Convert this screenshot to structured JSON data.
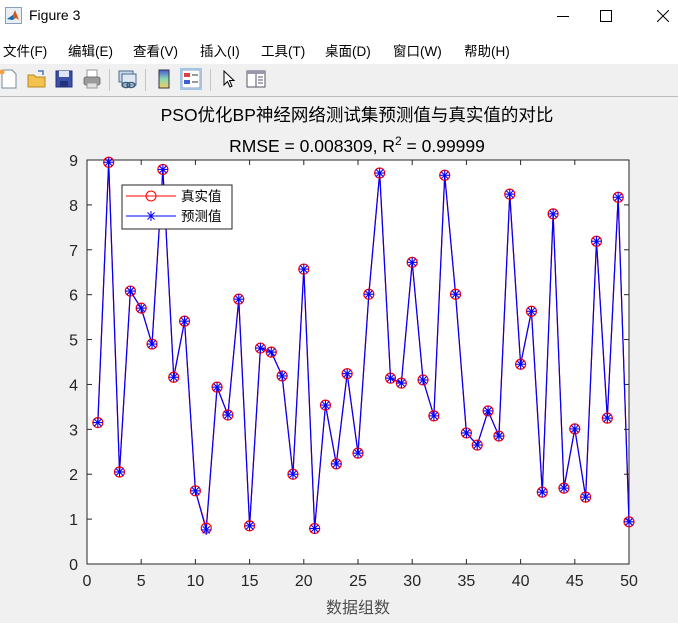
{
  "window": {
    "title": "Figure 3",
    "minimize_icon": "minimize-icon",
    "maximize_icon": "maximize-icon",
    "close_icon": "close-icon"
  },
  "menu": {
    "items": [
      {
        "label": "文件(F)"
      },
      {
        "label": "编辑(E)"
      },
      {
        "label": "查看(V)"
      },
      {
        "label": "插入(I)"
      },
      {
        "label": "工具(T)"
      },
      {
        "label": "桌面(D)"
      },
      {
        "label": "窗口(W)"
      },
      {
        "label": "帮助(H)"
      }
    ]
  },
  "toolbar": {
    "buttons": [
      {
        "icon": "new-figure-icon"
      },
      {
        "icon": "open-folder-icon"
      },
      {
        "icon": "save-icon"
      },
      {
        "icon": "print-icon"
      },
      {
        "icon": "link-plot-icon"
      },
      {
        "icon": "colorbar-icon"
      },
      {
        "icon": "legend-icon",
        "active": true
      },
      {
        "icon": "pointer-icon"
      },
      {
        "icon": "property-inspector-icon"
      }
    ]
  },
  "colors": {
    "true_series": "#ff0000",
    "pred_series": "#0000ff",
    "axes": "#262626",
    "background": "#f0f0f0"
  },
  "chart_data": {
    "type": "line",
    "title": "PSO优化BP神经网络测试集预测值与真实值的对比",
    "subtitle": "RMSE = 0.008309, R² = 0.99999",
    "subtitle_parts": {
      "prefix": "RMSE = 0.008309, R",
      "sup": "2",
      "suffix": " = 0.99999"
    },
    "xlabel": "数据组数",
    "ylabel": "",
    "xlim": [
      0,
      50
    ],
    "ylim": [
      0,
      9
    ],
    "xticks": [
      0,
      5,
      10,
      15,
      20,
      25,
      30,
      35,
      40,
      45,
      50
    ],
    "yticks": [
      0,
      1,
      2,
      3,
      4,
      5,
      6,
      7,
      8,
      9
    ],
    "grid": false,
    "legend_position": "upper left",
    "x": [
      1,
      2,
      3,
      4,
      5,
      6,
      7,
      8,
      9,
      10,
      11,
      12,
      13,
      14,
      15,
      16,
      17,
      18,
      19,
      20,
      21,
      22,
      23,
      24,
      25,
      26,
      27,
      28,
      29,
      30,
      31,
      32,
      33,
      34,
      35,
      36,
      37,
      38,
      39,
      40,
      41,
      42,
      43,
      44,
      45,
      46,
      47,
      48,
      49,
      50
    ],
    "series": [
      {
        "name": "真实值",
        "marker": "o",
        "color": "#ff0000",
        "values": [
          3.15,
          8.95,
          2.05,
          6.08,
          5.7,
          4.9,
          8.79,
          4.16,
          5.41,
          1.63,
          0.8,
          3.94,
          3.32,
          5.9,
          0.85,
          4.81,
          4.72,
          4.19,
          2.0,
          6.57,
          0.79,
          3.54,
          2.23,
          4.24,
          2.47,
          6.01,
          8.71,
          4.14,
          4.03,
          6.72,
          4.1,
          3.3,
          8.66,
          6.01,
          2.92,
          2.65,
          3.41,
          2.85,
          8.24,
          4.45,
          5.63,
          1.6,
          7.8,
          1.69,
          3.01,
          1.49,
          7.19,
          3.25,
          8.17,
          0.94
        ]
      },
      {
        "name": "预测值",
        "marker": "*",
        "color": "#0000ff",
        "values": [
          3.15,
          8.95,
          2.05,
          6.08,
          5.7,
          4.9,
          8.79,
          4.16,
          5.41,
          1.63,
          0.76,
          3.94,
          3.32,
          5.9,
          0.85,
          4.81,
          4.72,
          4.19,
          2.0,
          6.57,
          0.79,
          3.54,
          2.23,
          4.24,
          2.47,
          6.01,
          8.71,
          4.14,
          4.03,
          6.72,
          4.1,
          3.3,
          8.66,
          6.01,
          2.92,
          2.65,
          3.41,
          2.85,
          8.24,
          4.45,
          5.63,
          1.6,
          7.8,
          1.69,
          3.01,
          1.49,
          7.19,
          3.25,
          8.17,
          0.94
        ]
      }
    ]
  }
}
